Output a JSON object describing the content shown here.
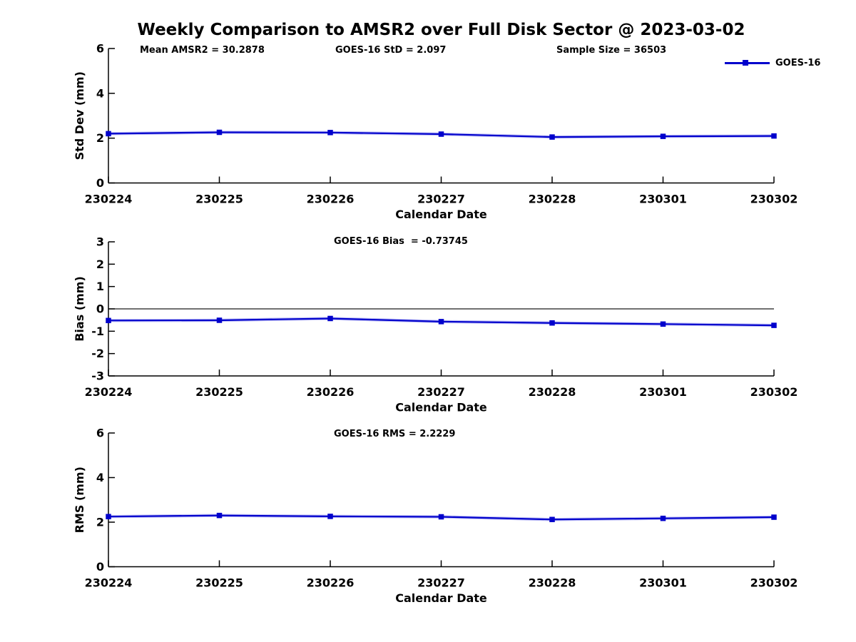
{
  "title": "Weekly Comparison to AMSR2 over Full Disk Sector @ 2023-03-02",
  "legend": {
    "label": "GOES-16"
  },
  "colors": {
    "line": "#0000cc",
    "line_halo": "#7878ee",
    "axis": "#000000",
    "zero_line": "#1a1a1a",
    "text": "#000000",
    "background": "#ffffff"
  },
  "chart_data": [
    {
      "type": "line",
      "name": "std-dev",
      "title": "",
      "categories": [
        "230224",
        "230225",
        "230226",
        "230227",
        "230228",
        "230301",
        "230302"
      ],
      "series": [
        {
          "name": "GOES-16",
          "values": [
            2.2,
            2.26,
            2.25,
            2.18,
            2.05,
            2.08,
            2.097
          ]
        }
      ],
      "xlabel": "Calendar Date",
      "ylabel": "Std Dev (mm)",
      "ylim": [
        0,
        6
      ],
      "yticks": [
        0,
        2,
        4,
        6
      ],
      "zero_line": false,
      "grid": false,
      "legend_position": "top-right",
      "annotations": [
        "Mean AMSR2 = 30.2878",
        "GOES-16 StD = 2.097",
        "Sample Size = 36503"
      ]
    },
    {
      "type": "line",
      "name": "bias",
      "title": "",
      "categories": [
        "230224",
        "230225",
        "230226",
        "230227",
        "230228",
        "230301",
        "230302"
      ],
      "series": [
        {
          "name": "GOES-16",
          "values": [
            -0.52,
            -0.51,
            -0.43,
            -0.57,
            -0.63,
            -0.68,
            -0.73745
          ]
        }
      ],
      "xlabel": "Calendar Date",
      "ylabel": "Bias (mm)",
      "ylim": [
        -3,
        3
      ],
      "yticks": [
        -3,
        -2,
        -1,
        0,
        1,
        2,
        3
      ],
      "zero_line": true,
      "grid": false,
      "legend_position": "none",
      "annotations": [
        "GOES-16 Bias  = -0.73745"
      ]
    },
    {
      "type": "line",
      "name": "rms",
      "title": "",
      "categories": [
        "230224",
        "230225",
        "230226",
        "230227",
        "230228",
        "230301",
        "230302"
      ],
      "series": [
        {
          "name": "GOES-16",
          "values": [
            2.25,
            2.3,
            2.26,
            2.24,
            2.12,
            2.17,
            2.2229
          ]
        }
      ],
      "xlabel": "Calendar Date",
      "ylabel": "RMS (mm)",
      "ylim": [
        0,
        6
      ],
      "yticks": [
        0,
        2,
        4,
        6
      ],
      "zero_line": false,
      "grid": false,
      "legend_position": "none",
      "annotations": [
        "GOES-16 RMS = 2.2229"
      ]
    }
  ]
}
